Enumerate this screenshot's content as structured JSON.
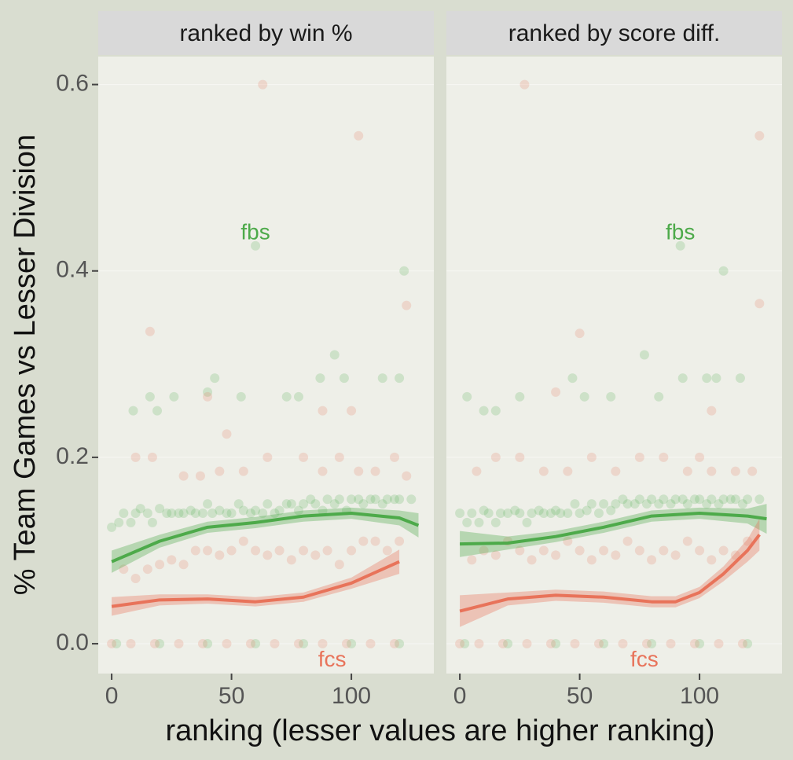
{
  "chart_data": {
    "type": "scatter",
    "xlabel": "ranking (lesser values are higher ranking)",
    "ylabel": "% Team Games vs Lesser Division",
    "xlim": [
      -5.6,
      134.4
    ],
    "ylim": [
      -0.032,
      0.63
    ],
    "xticks": [
      0,
      50,
      100
    ],
    "yticks": [
      {
        "value": 0,
        "label": "0.0"
      },
      0.2,
      0.4,
      0.6
    ],
    "panels": [
      {
        "title": "ranked by win %",
        "series": [
          {
            "name": "fbs",
            "color": "#4daa4a",
            "x": [
              0,
              3,
              5,
              8,
              10,
              12,
              15,
              17,
              20,
              23,
              25,
              28,
              30,
              33,
              35,
              38,
              40,
              42,
              45,
              48,
              50,
              53,
              55,
              58,
              60,
              63,
              65,
              68,
              70,
              73,
              75,
              78,
              80,
              83,
              85,
              88,
              90,
              93,
              95,
              98,
              100,
              103,
              105,
              108,
              110,
              113,
              115,
              118,
              120,
              125,
              9,
              16,
              19,
              26,
              40,
              43,
              54,
              73,
              78,
              87,
              93,
              97,
              113,
              120,
              60,
              122,
              2,
              20,
              40,
              60,
              80,
              100,
              120
            ],
            "values": [
              0.125,
              0.13,
              0.14,
              0.13,
              0.14,
              0.145,
              0.14,
              0.13,
              0.145,
              0.14,
              0.14,
              0.14,
              0.14,
              0.143,
              0.14,
              0.14,
              0.15,
              0.14,
              0.143,
              0.14,
              0.14,
              0.15,
              0.143,
              0.14,
              0.143,
              0.14,
              0.15,
              0.14,
              0.143,
              0.15,
              0.15,
              0.143,
              0.15,
              0.155,
              0.15,
              0.143,
              0.155,
              0.15,
              0.155,
              0.143,
              0.155,
              0.155,
              0.15,
              0.155,
              0.155,
              0.15,
              0.155,
              0.155,
              0.155,
              0.155,
              0.25,
              0.265,
              0.25,
              0.265,
              0.27,
              0.285,
              0.265,
              0.265,
              0.265,
              0.285,
              0.31,
              0.285,
              0.285,
              0.285,
              0.427,
              0.4,
              0,
              0,
              0,
              0,
              0,
              0,
              0
            ],
            "smooth": {
              "x": [
                0,
                20,
                40,
                60,
                80,
                100,
                120,
                128
              ],
              "values": [
                0.088,
                0.11,
                0.125,
                0.13,
                0.137,
                0.14,
                0.135,
                0.127
              ],
              "lower": [
                0.076,
                0.103,
                0.119,
                0.124,
                0.131,
                0.134,
                0.127,
                0.114
              ],
              "upper": [
                0.1,
                0.117,
                0.131,
                0.136,
                0.143,
                0.146,
                0.143,
                0.14
              ]
            }
          },
          {
            "name": "fcs",
            "color": "#e8735a",
            "x": [
              5,
              10,
              15,
              20,
              25,
              30,
              35,
              40,
              45,
              50,
              55,
              60,
              65,
              70,
              75,
              80,
              85,
              90,
              95,
              100,
              105,
              110,
              115,
              120,
              10,
              17,
              30,
              37,
              45,
              55,
              65,
              80,
              88,
              95,
              103,
              110,
              118,
              123,
              16,
              40,
              48,
              88,
              100,
              63,
              103,
              123,
              0,
              8,
              18,
              28,
              38,
              48,
              58,
              68,
              78,
              88,
              98,
              108,
              118
            ],
            "values": [
              0.08,
              0.07,
              0.08,
              0.085,
              0.09,
              0.085,
              0.1,
              0.1,
              0.095,
              0.1,
              0.11,
              0.1,
              0.095,
              0.1,
              0.09,
              0.1,
              0.095,
              0.1,
              0.085,
              0.1,
              0.11,
              0.11,
              0.1,
              0.11,
              0.2,
              0.2,
              0.18,
              0.18,
              0.185,
              0.185,
              0.2,
              0.2,
              0.185,
              0.2,
              0.185,
              0.185,
              0.2,
              0.18,
              0.335,
              0.265,
              0.225,
              0.25,
              0.25,
              0.6,
              0.545,
              0.363,
              0,
              0,
              0,
              0,
              0,
              0,
              0,
              0,
              0,
              0,
              0,
              0,
              0
            ],
            "smooth": {
              "x": [
                0,
                20,
                40,
                60,
                80,
                100,
                120
              ],
              "values": [
                0.04,
                0.047,
                0.048,
                0.045,
                0.05,
                0.065,
                0.088
              ],
              "lower": [
                0.03,
                0.041,
                0.043,
                0.04,
                0.045,
                0.059,
                0.075
              ],
              "upper": [
                0.05,
                0.053,
                0.053,
                0.05,
                0.055,
                0.071,
                0.101
              ]
            }
          }
        ]
      },
      {
        "title": "ranked by score diff.",
        "series": [
          {
            "name": "fbs",
            "color": "#4daa4a",
            "x": [
              0,
              3,
              5,
              8,
              10,
              12,
              15,
              17,
              20,
              23,
              25,
              28,
              30,
              33,
              35,
              38,
              40,
              42,
              45,
              48,
              50,
              53,
              55,
              58,
              60,
              63,
              65,
              68,
              70,
              73,
              75,
              78,
              80,
              83,
              85,
              88,
              90,
              93,
              95,
              98,
              100,
              103,
              105,
              108,
              110,
              113,
              115,
              118,
              120,
              125,
              3,
              10,
              15,
              25,
              47,
              52,
              63,
              77,
              83,
              93,
              103,
              107,
              117,
              92,
              110,
              2,
              20,
              40,
              60,
              80,
              100,
              120
            ],
            "values": [
              0.14,
              0.13,
              0.14,
              0.13,
              0.143,
              0.14,
              0.13,
              0.14,
              0.14,
              0.143,
              0.14,
              0.13,
              0.14,
              0.143,
              0.14,
              0.14,
              0.143,
              0.14,
              0.14,
              0.15,
              0.14,
              0.143,
              0.15,
              0.14,
              0.15,
              0.143,
              0.15,
              0.155,
              0.15,
              0.15,
              0.155,
              0.15,
              0.155,
              0.15,
              0.155,
              0.15,
              0.155,
              0.155,
              0.15,
              0.155,
              0.155,
              0.15,
              0.155,
              0.15,
              0.155,
              0.155,
              0.155,
              0.15,
              0.155,
              0.155,
              0.265,
              0.25,
              0.25,
              0.265,
              0.285,
              0.265,
              0.265,
              0.31,
              0.265,
              0.285,
              0.285,
              0.285,
              0.285,
              0.427,
              0.4,
              0,
              0,
              0,
              0,
              0,
              0,
              0
            ],
            "smooth": {
              "x": [
                0,
                20,
                40,
                60,
                80,
                100,
                120,
                128
              ],
              "values": [
                0.107,
                0.108,
                0.115,
                0.125,
                0.137,
                0.14,
                0.137,
                0.134
              ],
              "lower": [
                0.093,
                0.101,
                0.109,
                0.119,
                0.131,
                0.134,
                0.129,
                0.118
              ],
              "upper": [
                0.121,
                0.115,
                0.121,
                0.131,
                0.143,
                0.146,
                0.145,
                0.15
              ]
            }
          },
          {
            "name": "fcs",
            "color": "#e8735a",
            "x": [
              5,
              10,
              15,
              20,
              25,
              30,
              35,
              40,
              45,
              50,
              55,
              60,
              65,
              70,
              75,
              80,
              85,
              90,
              95,
              100,
              105,
              110,
              115,
              120,
              7,
              15,
              25,
              35,
              45,
              55,
              65,
              75,
              85,
              95,
              100,
              105,
              115,
              122,
              27,
              125,
              125,
              50,
              105,
              40,
              0,
              8,
              18,
              28,
              38,
              48,
              58,
              68,
              78,
              88,
              98,
              108,
              118
            ],
            "values": [
              0.09,
              0.1,
              0.095,
              0.11,
              0.1,
              0.09,
              0.1,
              0.095,
              0.11,
              0.1,
              0.09,
              0.1,
              0.095,
              0.11,
              0.1,
              0.09,
              0.1,
              0.095,
              0.11,
              0.1,
              0.09,
              0.1,
              0.095,
              0.11,
              0.185,
              0.2,
              0.2,
              0.185,
              0.185,
              0.2,
              0.185,
              0.2,
              0.2,
              0.185,
              0.2,
              0.185,
              0.185,
              0.185,
              0.6,
              0.545,
              0.365,
              0.333,
              0.25,
              0.27,
              0,
              0,
              0,
              0,
              0,
              0,
              0,
              0,
              0,
              0,
              0,
              0,
              0
            ],
            "smooth": {
              "x": [
                0,
                20,
                40,
                60,
                80,
                90,
                100,
                110,
                120,
                125
              ],
              "values": [
                0.035,
                0.048,
                0.052,
                0.05,
                0.045,
                0.045,
                0.055,
                0.075,
                0.1,
                0.117
              ],
              "lower": [
                0.018,
                0.041,
                0.046,
                0.044,
                0.039,
                0.039,
                0.049,
                0.067,
                0.088,
                0.1
              ],
              "upper": [
                0.052,
                0.055,
                0.058,
                0.056,
                0.051,
                0.051,
                0.061,
                0.083,
                0.112,
                0.134
              ]
            }
          }
        ]
      }
    ]
  }
}
